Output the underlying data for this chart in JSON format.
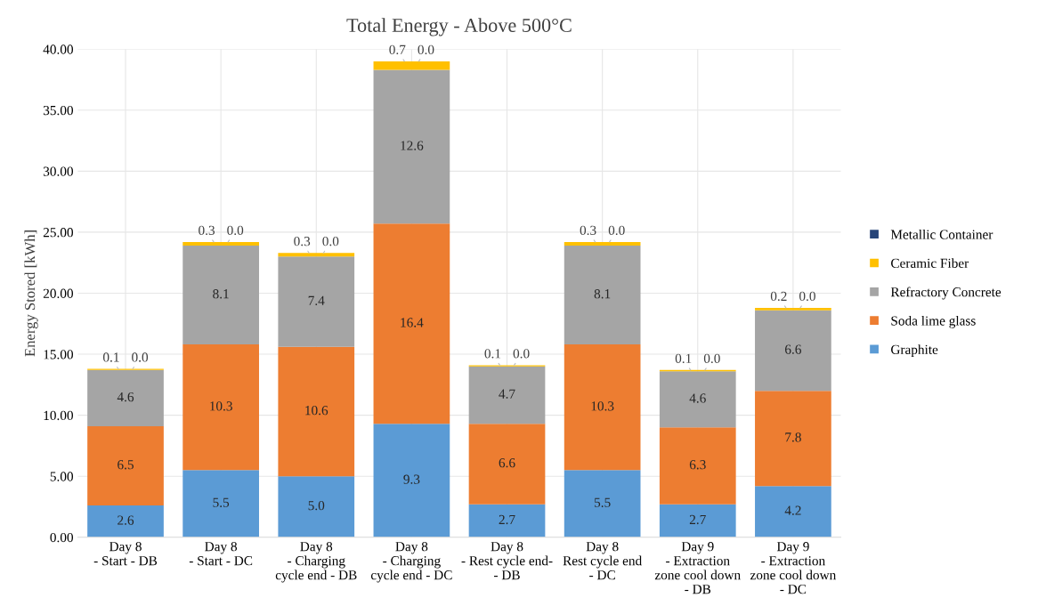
{
  "chart_data": {
    "type": "bar",
    "stacked": true,
    "title": "Total Energy - Above 500°C",
    "ylabel": "Energy Stored [kWh]",
    "categories": [
      "Day 8\n- Start - DB",
      "Day 8\n- Start - DC",
      "Day 8\n- Charging\ncycle end - DB",
      "Day 8\n- Charging\ncycle end - DC",
      "Day 8\n- Rest cycle end-\n- DB",
      "Day 8\nRest cycle end\n- DC",
      "Day 9\n- Extraction\nzone cool down\n- DB",
      "Day 9\n- Extraction\nzone cool down\n- DC"
    ],
    "series": [
      {
        "name": "Graphite",
        "color": "#5b9bd5",
        "values": [
          2.6,
          5.5,
          5.0,
          9.3,
          2.7,
          5.5,
          2.7,
          4.2
        ],
        "value_labels": [
          "2.6",
          "5.5",
          "5.0",
          "9.3",
          "2.7",
          "5.5",
          "2.7",
          "4.2"
        ]
      },
      {
        "name": "Soda lime glass",
        "color": "#ed7d31",
        "values": [
          6.5,
          10.3,
          10.6,
          16.4,
          6.6,
          10.3,
          6.3,
          7.8
        ],
        "value_labels": [
          "6.5",
          "10.3",
          "10.6",
          "16.4",
          "6.6",
          "10.3",
          "6.3",
          "7.8"
        ]
      },
      {
        "name": "Refractory Concrete",
        "color": "#a5a5a5",
        "values": [
          4.6,
          8.1,
          7.4,
          12.6,
          4.7,
          8.1,
          4.6,
          6.6
        ],
        "value_labels": [
          "4.6",
          "8.1",
          "7.4",
          "12.6",
          "4.7",
          "8.1",
          "4.6",
          "6.6"
        ]
      },
      {
        "name": "Ceramic Fiber",
        "color": "#ffc000",
        "values": [
          0.1,
          0.3,
          0.3,
          0.7,
          0.1,
          0.3,
          0.1,
          0.2
        ],
        "value_labels": [
          "0.1",
          "0.3",
          "0.3",
          "0.7",
          "0.1",
          "0.3",
          "0.1",
          "0.2"
        ]
      },
      {
        "name": "Metallic Container",
        "color": "#264478",
        "values": [
          0.0,
          0.0,
          0.0,
          0.0,
          0.0,
          0.0,
          0.0,
          0.0
        ],
        "value_labels": [
          "0.0",
          "0.0",
          "0.0",
          "0.0",
          "0.0",
          "0.0",
          "0.0",
          "0.0"
        ]
      }
    ],
    "ylim": [
      0,
      40
    ],
    "yticks": [
      {
        "value": 0,
        "label": "0.00"
      },
      {
        "value": 5,
        "label": "5.00"
      },
      {
        "value": 10,
        "label": "10.00"
      },
      {
        "value": 15,
        "label": "15.00"
      },
      {
        "value": 20,
        "label": "20.00"
      },
      {
        "value": 25,
        "label": "25.00"
      },
      {
        "value": 30,
        "label": "30.00"
      },
      {
        "value": 35,
        "label": "35.00"
      },
      {
        "value": 40,
        "label": "40.00"
      }
    ],
    "grid": true,
    "legend": "right"
  }
}
